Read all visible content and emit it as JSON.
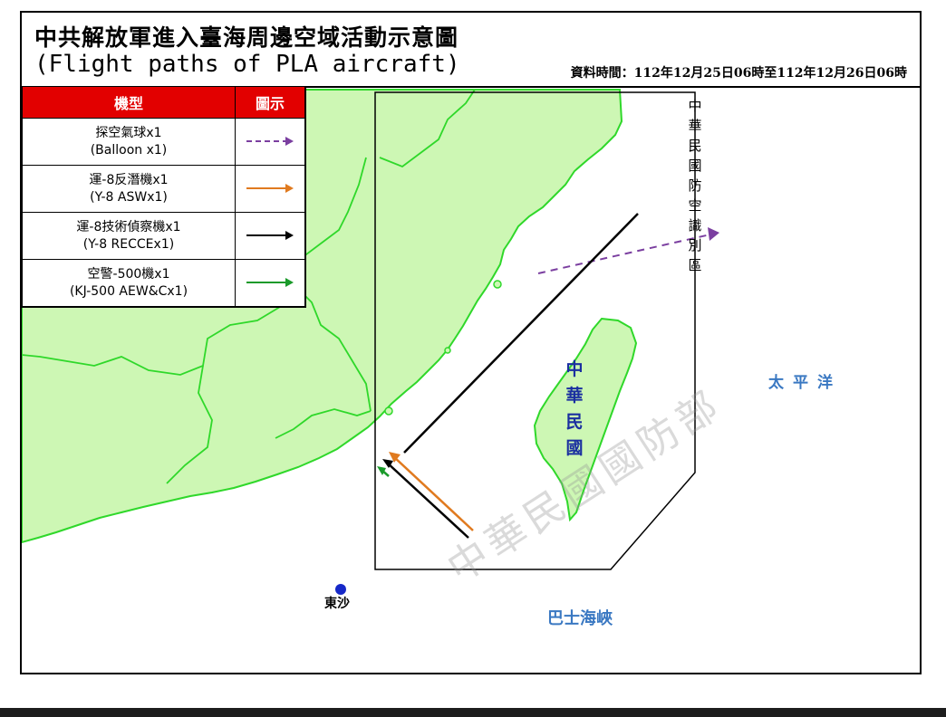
{
  "header": {
    "title_zh": "中共解放軍進入臺海周邊空域活動示意圖",
    "title_en": "(Flight paths of PLA aircraft)",
    "data_time": "資料時間：112年12月25日06時至112年12月26日06時"
  },
  "legend": {
    "col_type": "機型",
    "col_icon": "圖示",
    "rows": [
      {
        "zh": "探空氣球x1",
        "en": "(Balloon x1)",
        "color": "#7b3fa0",
        "style": "dashed"
      },
      {
        "zh": "運-8反潛機x1",
        "en": "(Y-8 ASWx1)",
        "color": "#e07a1f",
        "style": "solid"
      },
      {
        "zh": "運-8技術偵察機x1",
        "en": "(Y-8 RECCEx1)",
        "color": "#000000",
        "style": "solid"
      },
      {
        "zh": "空警-500機x1",
        "en": "(KJ-500 AEW&Cx1)",
        "color": "#1a9a2a",
        "style": "solid"
      }
    ]
  },
  "map": {
    "adiz_label": "中華民國防空識別區",
    "roc_label": "中華民國",
    "pacific_label": "太平洋",
    "bashi_label": "巴士海峽",
    "dongsha_label": "東沙",
    "watermark": "中華民國國防部",
    "colors": {
      "land": "#cdf7b4",
      "coast": "#2fd82a",
      "dongsha": "#1628c8"
    }
  }
}
